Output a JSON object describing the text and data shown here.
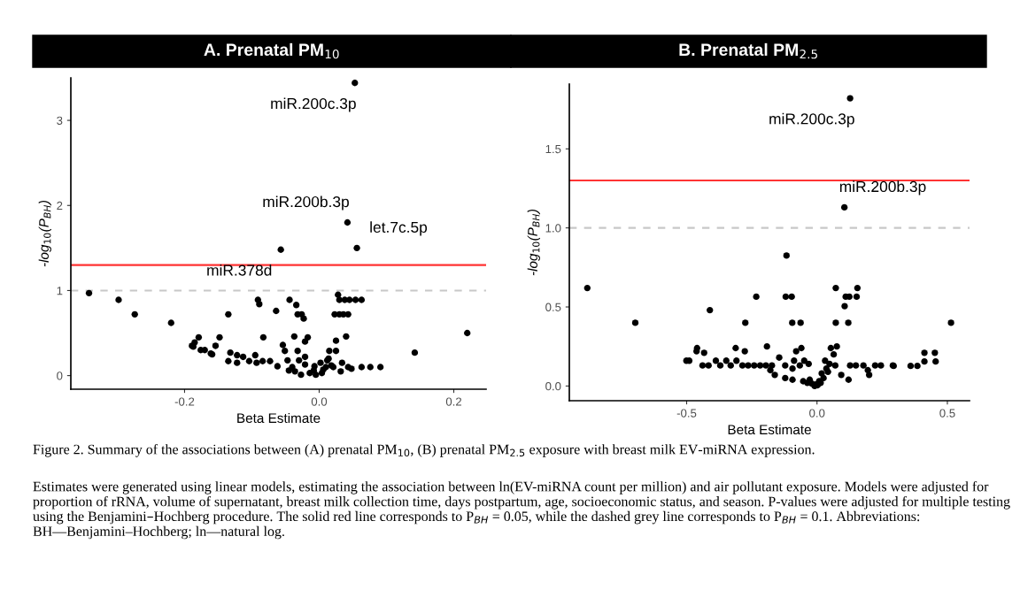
{
  "chart_data": [
    {
      "type": "scatter",
      "title": "A. Prenatal PM$_{10}$",
      "xlabel": "Beta Estimate",
      "ylabel": "-log$_{10}$(P$_{BH}$)",
      "marker": "circle",
      "grid": false,
      "legend": false,
      "xlim": [
        -0.369,
        0.248
      ],
      "ylim": [
        -0.16,
        3.5
      ],
      "xticks": [
        {
          "value": -0.2,
          "label": "-0.2"
        },
        {
          "value": 0.0,
          "label": "0.0"
        },
        {
          "value": 0.2,
          "label": "0.2"
        }
      ],
      "yticks": [
        0,
        1,
        2,
        3
      ],
      "ref_lines": [
        {
          "axis": "y",
          "value": 1.3,
          "color": "#ff3333",
          "line_style": "solid"
        },
        {
          "axis": "y",
          "value": 1.0,
          "color": "#c8c8c8",
          "line_style": "dashed"
        }
      ],
      "series": [
        {
          "color": "#000000",
          "x": [
            0.053,
            0.042,
            0.056,
            -0.057,
            -0.342,
            -0.298,
            -0.274,
            -0.22,
            0.22,
            0.142,
            -0.189,
            -0.179,
            -0.185,
            -0.17,
            -0.159,
            -0.154,
            -0.148,
            -0.135,
            -0.132,
            -0.135,
            -0.122,
            -0.122,
            -0.113,
            -0.104,
            -0.095,
            -0.093,
            -0.084,
            -0.083,
            -0.091,
            -0.089,
            -0.073,
            -0.064,
            -0.062,
            -0.054,
            -0.051,
            -0.047,
            -0.044,
            -0.037,
            -0.034,
            -0.032,
            -0.023,
            -0.032,
            -0.021,
            -0.017,
            -0.03,
            -0.021,
            -0.04,
            -0.036,
            -0.027,
            -0.014,
            -0.005,
            0.004,
            0.01,
            0.012,
            0.015,
            0.025,
            0.025,
            0.028,
            0.03,
            0.038,
            0.045,
            0.054,
            0.063,
            0.023,
            0.03,
            0.036,
            0.043,
            0.04,
            0.021,
            0.034,
            0.043,
            0.063,
            0.076,
            0.091,
            -0.007,
            -0.021,
            -0.026,
            -0.187,
            -0.161,
            -0.176,
            -0.008,
            0.006,
            0.018,
            0.048,
            0.002,
            -0.045,
            0.014,
            0.032
          ],
          "values": [
            3.44,
            1.8,
            1.5,
            1.48,
            0.97,
            0.89,
            0.72,
            0.62,
            0.5,
            0.27,
            0.35,
            0.45,
            0.39,
            0.3,
            0.25,
            0.35,
            0.45,
            0.72,
            0.27,
            0.17,
            0.24,
            0.15,
            0.22,
            0.17,
            0.24,
            0.15,
            0.17,
            0.45,
            0.89,
            0.84,
            0.17,
            0.76,
            0.11,
            0.36,
            0.29,
            0.18,
            0.89,
            0.46,
            0.83,
            0.72,
            0.67,
            0.29,
            0.4,
            0.45,
            0.18,
            0.22,
            0.1,
            0.05,
            0.01,
            0.03,
            0.01,
            0.03,
            0.1,
            0.18,
            0.29,
            0.29,
            0.41,
            0.95,
            0.89,
            0.89,
            0.89,
            0.89,
            0.89,
            0.72,
            0.72,
            0.72,
            0.72,
            0.46,
            0.1,
            0.15,
            0.1,
            0.1,
            0.1,
            0.1,
            0.11,
            0.13,
            0.72,
            0.34,
            0.26,
            0.3,
            0.06,
            0.07,
            0.12,
            0.08,
            0.15,
            0.06,
            0.2,
            0.05
          ]
        }
      ],
      "annotations": [
        {
          "text": "miR.200c.3p",
          "x": 0.053,
          "y": 3.44
        },
        {
          "text": "miR.200b.3p",
          "x": 0.042,
          "y": 1.8
        },
        {
          "text": "let.7c.5p",
          "x": 0.056,
          "y": 1.5
        },
        {
          "text": "miR.378d",
          "x": -0.057,
          "y": 1.48
        },
        "Figure 2. Summary of the associations between (A) prenatal PM$_{10}$, (B) prenatal PM$_{2.5}$ exposure with breast milk EV-miRNA expression.",
        "Estimates were generated using linear models, estimating the association between ln(EV-miRNA count per million) and air pollutant exposure. Models were adjusted for proportion of rRNA, volume of supernatant, breast milk collection time, days postpartum, age, socioeconomic status, and season. P-values were adjusted for multiple testing using the Benjamini–Hochberg procedure. The solid red line corresponds to P$_{BH}$ = 0.05, while the dashed grey line corresponds to P$_{BH}$ = 0.1. Abbreviations: BH—Benjamini–Hochberg; ln—natural log."
      ]
    },
    {
      "type": "scatter",
      "title": "B. Prenatal PM$_{2.5}$",
      "xlabel": "Beta Estimate",
      "ylabel": "-log$_{10}$(P$_{BH}$)",
      "marker": "circle",
      "grid": false,
      "legend": false,
      "xlim": [
        -0.95,
        0.585
      ],
      "ylim": [
        -0.093,
        1.91
      ],
      "xticks": [
        {
          "value": -0.5,
          "label": "-0.5"
        },
        {
          "value": 0.0,
          "label": "0.0"
        },
        {
          "value": 0.5,
          "label": "0.5"
        }
      ],
      "yticks": [
        {
          "value": 0.0,
          "label": "0.0"
        },
        {
          "value": 0.5,
          "label": "0.5"
        },
        {
          "value": 1.0,
          "label": "1.0"
        },
        {
          "value": 1.5,
          "label": "1.5"
        }
      ],
      "ref_lines": [
        {
          "axis": "y",
          "value": 1.3,
          "color": "#ff3333",
          "line_style": "solid"
        },
        {
          "axis": "y",
          "value": 1.0,
          "color": "#c8c8c8",
          "line_style": "dashed"
        }
      ],
      "series": [
        {
          "color": "#000000",
          "x": [
            0.127,
            0.105,
            -0.881,
            -0.697,
            -0.501,
            -0.49,
            -0.46,
            0.294,
            0.359,
            0.385,
            0.412,
            0.452,
            0.412,
            0.455,
            0.514,
            -0.117,
            -0.462,
            -0.433,
            -0.439,
            -0.416,
            -0.388,
            -0.371,
            -0.348,
            -0.331,
            -0.309,
            -0.312,
            -0.277,
            -0.286,
            -0.264,
            -0.241,
            -0.218,
            -0.196,
            -0.173,
            -0.192,
            -0.179,
            -0.162,
            -0.145,
            -0.122,
            -0.122,
            -0.088,
            -0.094,
            -0.08,
            -0.06,
            -0.066,
            -0.049,
            -0.032,
            -0.094,
            -0.053,
            -0.037,
            -0.02,
            -0.009,
            0.002,
            0.014,
            0.025,
            0.036,
            0.031,
            0.048,
            0.053,
            0.076,
            0.064,
            0.07,
            0.093,
            0.121,
            0.127,
            0.149,
            0.178,
            0.195,
            0.2,
            0.223,
            0.245,
            0.291,
            -0.275,
            -0.411,
            -0.233,
            -0.12,
            -0.097,
            -0.095,
            -0.063,
            0.072,
            0.155,
            0.11,
            0.124,
            0.152,
            0.106,
            0.072,
            0.12,
            -0.005,
            0.008,
            0.018,
            -0.028,
            0.042
          ],
          "values": [
            1.82,
            1.13,
            0.62,
            0.4,
            0.16,
            0.16,
            0.24,
            0.127,
            0.127,
            0.127,
            0.21,
            0.21,
            0.155,
            0.155,
            0.4,
            0.825,
            0.22,
            0.21,
            0.13,
            0.13,
            0.16,
            0.13,
            0.16,
            0.13,
            0.16,
            0.24,
            0.22,
            0.13,
            0.13,
            0.13,
            0.13,
            0.13,
            0.13,
            0.25,
            0.1,
            0.07,
            0.18,
            0.13,
            0.05,
            0.16,
            0.11,
            0.22,
            0.24,
            0.13,
            0.16,
            0.14,
            0.04,
            0.03,
            0.02,
            0.015,
            0.0,
            0.005,
            0.02,
            0.05,
            0.11,
            0.16,
            0.14,
            0.24,
            0.25,
            0.2,
            0.13,
            0.07,
            0.04,
            0.13,
            0.13,
            0.13,
            0.1,
            0.07,
            0.13,
            0.13,
            0.13,
            0.4,
            0.48,
            0.565,
            0.565,
            0.565,
            0.4,
            0.4,
            0.62,
            0.62,
            0.565,
            0.565,
            0.565,
            0.505,
            0.4,
            0.4,
            0.01,
            0.03,
            0.08,
            0.04,
            0.09
          ]
        }
      ],
      "annotations": [
        {
          "text": "miR.200c.3p",
          "x": 0.127,
          "y": 1.82
        },
        {
          "text": "miR.200b.3p",
          "x": 0.105,
          "y": 1.13
        }
      ]
    }
  ]
}
